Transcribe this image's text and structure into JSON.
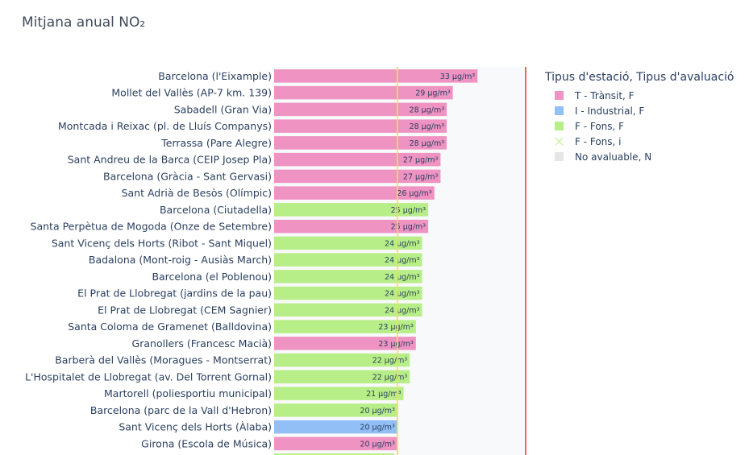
{
  "title": "Mitjana anual NO₂",
  "chart_data": {
    "type": "bar",
    "orientation": "horizontal",
    "unit": "µg/m³",
    "xlim": [
      0,
      40
    ],
    "reference_lines": [
      {
        "value": 20,
        "color": "#f2e04a"
      },
      {
        "value": 40,
        "color": "#e0453a"
      }
    ],
    "legend": {
      "title": "Tipus d'estació, Tipus d'avaluació",
      "placement": "right",
      "items": [
        {
          "label": "T - Trànsit, F",
          "color": "#ef93c3",
          "key": "T-F"
        },
        {
          "label": "I - Industrial, F",
          "color": "#91bff6",
          "key": "I-F"
        },
        {
          "label": "F - Fons, F",
          "color": "#b8ee88",
          "key": "F-F"
        },
        {
          "label": "F - Fons, i",
          "color": "#b8ee88",
          "key": "F-i",
          "symbol": "x"
        },
        {
          "label": "No avaluable, N",
          "color": "#e6e6e6",
          "key": "N"
        }
      ]
    },
    "bars": [
      {
        "station": "Barcelona (l'Eixample)",
        "value": 33,
        "label": "33 µg/m³",
        "group": "T-F"
      },
      {
        "station": "Mollet del Vallès (AP-7 km. 139)",
        "value": 29,
        "label": "29 µg/m³",
        "group": "T-F"
      },
      {
        "station": "Sabadell (Gran Via)",
        "value": 28,
        "label": "28 µg/m³",
        "group": "T-F"
      },
      {
        "station": "Montcada i Reixac (pl. de Lluís Companys)",
        "value": 28,
        "label": "28 µg/m³",
        "group": "T-F"
      },
      {
        "station": "Terrassa (Pare Alegre)",
        "value": 28,
        "label": "28 µg/m³",
        "group": "T-F"
      },
      {
        "station": "Sant Andreu de la Barca (CEIP Josep Pla)",
        "value": 27,
        "label": "27 µg/m³",
        "group": "T-F"
      },
      {
        "station": "Barcelona (Gràcia - Sant Gervasi)",
        "value": 27,
        "label": "27 µg/m³",
        "group": "T-F"
      },
      {
        "station": "Sant Adrià de Besòs (Olímpic)",
        "value": 26,
        "label": "26 µg/m³",
        "group": "T-F"
      },
      {
        "station": "Barcelona (Ciutadella)",
        "value": 25,
        "label": "25 µg/m³",
        "group": "F-F"
      },
      {
        "station": "Santa Perpètua de Mogoda (Onze de Setembre)",
        "value": 25,
        "label": "25 µg/m³",
        "group": "T-F"
      },
      {
        "station": "Sant Vicenç dels Horts (Ribot - Sant Miquel)",
        "value": 24,
        "label": "24 µg/m³",
        "group": "F-F"
      },
      {
        "station": "Badalona (Mont-roig - Ausiàs March)",
        "value": 24,
        "label": "24 µg/m³",
        "group": "F-F"
      },
      {
        "station": "Barcelona (el Poblenou)",
        "value": 24,
        "label": "24 µg/m³",
        "group": "F-F"
      },
      {
        "station": "El Prat de Llobregat (jardins de la pau)",
        "value": 24,
        "label": "24 µg/m³",
        "group": "F-F"
      },
      {
        "station": "El Prat de Llobregat (CEM Sagnier)",
        "value": 24,
        "label": "24 µg/m³",
        "group": "F-F"
      },
      {
        "station": "Santa Coloma de Gramenet (Balldovina)",
        "value": 23,
        "label": "23 µg/m³",
        "group": "F-F"
      },
      {
        "station": "Granollers (Francesc Macià)",
        "value": 23,
        "label": "23 µg/m³",
        "group": "T-F"
      },
      {
        "station": "Barberà del Vallès (Moragues - Montserrat)",
        "value": 22,
        "label": "22 µg/m³",
        "group": "F-F"
      },
      {
        "station": "L'Hospitalet de Llobregat (av. Del Torrent Gornal)",
        "value": 22,
        "label": "22 µg/m³",
        "group": "F-F"
      },
      {
        "station": "Martorell (poliesportiu municipal)",
        "value": 21,
        "label": "21 µg/m³",
        "group": "F-F"
      },
      {
        "station": "Barcelona (parc de la Vall d'Hebron)",
        "value": 20,
        "label": "20 µg/m³",
        "group": "F-F"
      },
      {
        "station": "Sant Vicenç dels Horts (Àlaba)",
        "value": 20,
        "label": "20 µg/m³",
        "group": "I-F"
      },
      {
        "station": "Girona (Escola de Música)",
        "value": 20,
        "label": "20 µg/m³",
        "group": "T-F"
      }
    ]
  }
}
